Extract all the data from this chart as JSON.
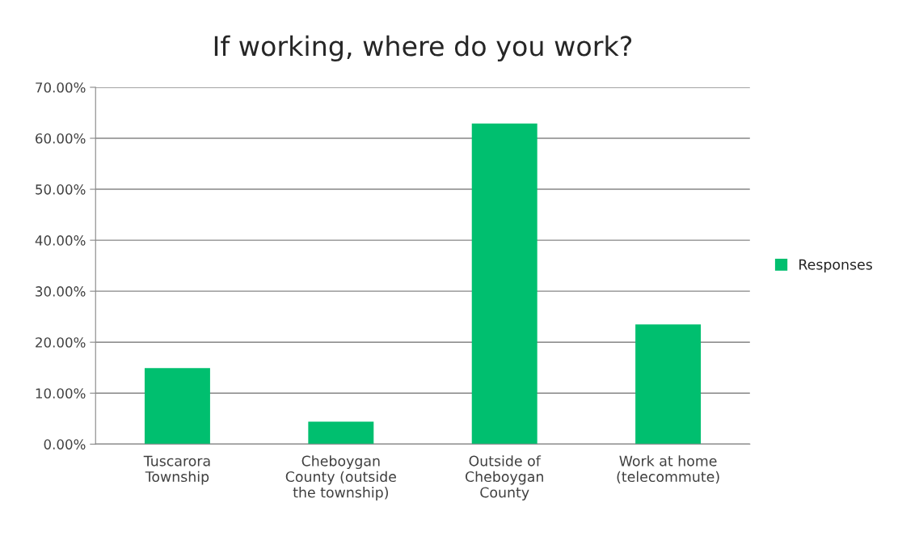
{
  "chart_data": {
    "type": "bar",
    "title": "If working, where do you work?",
    "categories": [
      "Tuscarora\nTownship",
      "Cheboygan\nCounty (outside\nthe township)",
      "Outside of\nCheboygan\nCounty",
      "Work at home\n(telecommute)"
    ],
    "series": [
      {
        "name": "Responses",
        "color": "#00bf6f",
        "values": [
          14.9,
          4.4,
          62.9,
          23.5
        ]
      }
    ],
    "ylim": [
      0,
      70
    ],
    "yticks": [
      {
        "value": 0,
        "label": "0.00%"
      },
      {
        "value": 10,
        "label": "10.00%"
      },
      {
        "value": 20,
        "label": "20.00%"
      },
      {
        "value": 30,
        "label": "30.00%"
      },
      {
        "value": 40,
        "label": "40.00%"
      },
      {
        "value": 50,
        "label": "50.00%"
      },
      {
        "value": 60,
        "label": "60.00%"
      },
      {
        "value": 70,
        "label": "70.00%"
      }
    ],
    "grid": "y",
    "legend": "right"
  }
}
